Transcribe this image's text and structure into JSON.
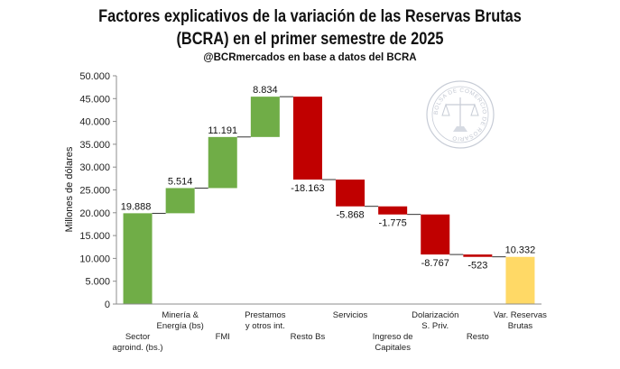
{
  "header": {
    "title_line1": "Factores explicativos de la variación de las Reservas Brutas",
    "title_line2": "(BCRA) en el primer semestre de 2025",
    "subtitle": "@BCRmercados en base a datos del BCRA"
  },
  "watermark": {
    "icon": "bolsa-de-comercio-de-rosario-seal-icon",
    "text": "BOLSA DE COMERCIO DE ROSARIO"
  },
  "colors": {
    "positive": "#70AD47",
    "negative": "#C00000",
    "total": "#FFD966",
    "connector": "#000000"
  },
  "chart_data": {
    "type": "bar",
    "subtype": "waterfall",
    "ylabel": "Millones de dólares",
    "ylim": [
      0,
      50000
    ],
    "ytick_step": 5000,
    "ytick_labels": [
      "0",
      "5.000",
      "10.000",
      "15.000",
      "20.000",
      "25.000",
      "30.000",
      "35.000",
      "40.000",
      "45.000",
      "50.000"
    ],
    "grid": false,
    "legend": "none",
    "categories": [
      "Sector agroind. (bs.)",
      "Minería & Energía (bs)",
      "FMI",
      "Prestamos y otros int.",
      "Resto Bs",
      "Servicios",
      "Ingreso de Capitales",
      "Dolarización S. Priv.",
      "Resto",
      "Var. Reservas Brutas"
    ],
    "category_label_lines": [
      [
        "Sector",
        "agroind. (bs.)"
      ],
      [
        "Minería &",
        "Energía (bs)"
      ],
      [
        "FMI"
      ],
      [
        "Prestamos",
        "y otros int."
      ],
      [
        "Resto Bs"
      ],
      [
        "Servicios"
      ],
      [
        "Ingreso de",
        "Capitales"
      ],
      [
        "Dolarización",
        "S. Priv."
      ],
      [
        "Resto"
      ],
      [
        "Var. Reservas",
        "Brutas"
      ]
    ],
    "values": [
      19888,
      5514,
      11191,
      8834,
      -18163,
      -5868,
      -1775,
      -8767,
      -523,
      10332
    ],
    "value_labels": [
      "19.888",
      "5.514",
      "11.191",
      "8.834",
      "-18.163",
      "-5.868",
      "-1.775",
      "-8.767",
      "-523",
      "10.332"
    ],
    "is_total": [
      false,
      false,
      false,
      false,
      false,
      false,
      false,
      false,
      false,
      true
    ]
  }
}
